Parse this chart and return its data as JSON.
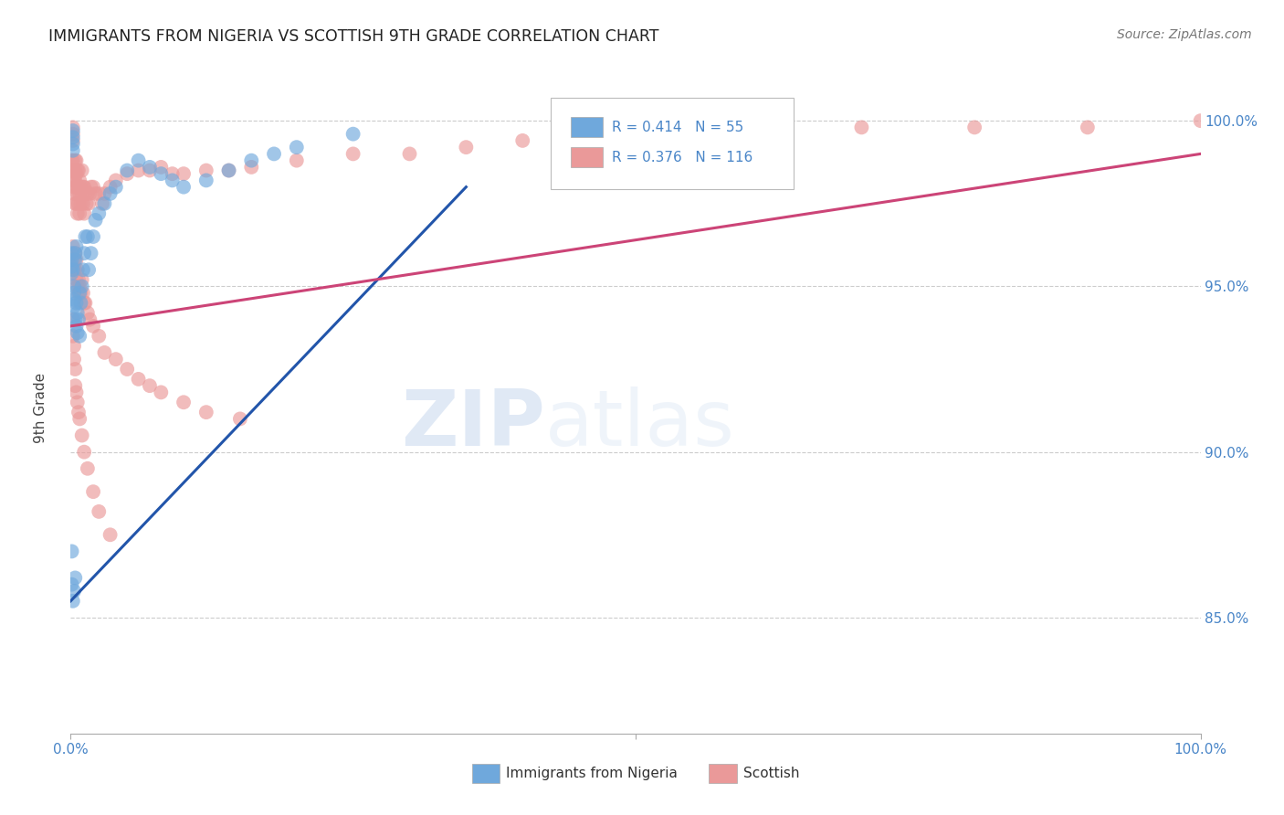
{
  "title": "IMMIGRANTS FROM NIGERIA VS SCOTTISH 9TH GRADE CORRELATION CHART",
  "source": "Source: ZipAtlas.com",
  "ylabel": "9th Grade",
  "ytick_labels": [
    "100.0%",
    "95.0%",
    "90.0%",
    "85.0%"
  ],
  "ytick_values": [
    1.0,
    0.95,
    0.9,
    0.85
  ],
  "xlim": [
    0.0,
    1.0
  ],
  "ylim": [
    0.815,
    1.018
  ],
  "legend_nigeria_R": "0.414",
  "legend_nigeria_N": "55",
  "legend_scottish_R": "0.376",
  "legend_scottish_N": "116",
  "color_nigeria": "#6fa8dc",
  "color_scottish": "#ea9999",
  "color_nigeria_line": "#2255aa",
  "color_scottish_line": "#cc4477",
  "color_axis_text": "#4a86c8",
  "watermark_zip": "ZIP",
  "watermark_atlas": "atlas",
  "nigeria_line_x0": 0.0,
  "nigeria_line_y0": 0.855,
  "nigeria_line_x1": 0.35,
  "nigeria_line_y1": 0.98,
  "scottish_line_x0": 0.0,
  "scottish_line_y0": 0.938,
  "scottish_line_x1": 1.0,
  "scottish_line_y1": 0.99,
  "nigeria_x": [
    0.001,
    0.001,
    0.001,
    0.001,
    0.002,
    0.002,
    0.002,
    0.002,
    0.002,
    0.003,
    0.003,
    0.003,
    0.003,
    0.004,
    0.004,
    0.004,
    0.005,
    0.005,
    0.005,
    0.006,
    0.006,
    0.007,
    0.008,
    0.008,
    0.009,
    0.01,
    0.011,
    0.012,
    0.013,
    0.015,
    0.016,
    0.018,
    0.02,
    0.022,
    0.025,
    0.03,
    0.035,
    0.04,
    0.05,
    0.06,
    0.07,
    0.08,
    0.09,
    0.1,
    0.12,
    0.14,
    0.16,
    0.18,
    0.2,
    0.25,
    0.001,
    0.001,
    0.002,
    0.003,
    0.004
  ],
  "nigeria_y": [
    0.96,
    0.958,
    0.956,
    0.954,
    0.997,
    0.995,
    0.993,
    0.991,
    0.955,
    0.95,
    0.948,
    0.946,
    0.944,
    0.96,
    0.958,
    0.94,
    0.962,
    0.945,
    0.938,
    0.942,
    0.936,
    0.94,
    0.948,
    0.935,
    0.945,
    0.95,
    0.955,
    0.96,
    0.965,
    0.965,
    0.955,
    0.96,
    0.965,
    0.97,
    0.972,
    0.975,
    0.978,
    0.98,
    0.985,
    0.988,
    0.986,
    0.984,
    0.982,
    0.98,
    0.982,
    0.985,
    0.988,
    0.99,
    0.992,
    0.996,
    0.87,
    0.86,
    0.855,
    0.858,
    0.862
  ],
  "scottish_x": [
    0.001,
    0.001,
    0.001,
    0.002,
    0.002,
    0.002,
    0.002,
    0.003,
    0.003,
    0.003,
    0.003,
    0.004,
    0.004,
    0.004,
    0.004,
    0.005,
    0.005,
    0.005,
    0.005,
    0.006,
    0.006,
    0.006,
    0.007,
    0.007,
    0.007,
    0.008,
    0.008,
    0.008,
    0.009,
    0.009,
    0.01,
    0.01,
    0.011,
    0.011,
    0.012,
    0.012,
    0.013,
    0.014,
    0.015,
    0.016,
    0.017,
    0.018,
    0.02,
    0.022,
    0.025,
    0.028,
    0.03,
    0.035,
    0.04,
    0.05,
    0.06,
    0.07,
    0.08,
    0.09,
    0.1,
    0.12,
    0.14,
    0.16,
    0.2,
    0.25,
    0.3,
    0.35,
    0.4,
    0.5,
    0.6,
    0.7,
    0.8,
    0.9,
    1.0,
    0.002,
    0.003,
    0.003,
    0.004,
    0.004,
    0.005,
    0.005,
    0.006,
    0.006,
    0.007,
    0.007,
    0.008,
    0.009,
    0.01,
    0.011,
    0.012,
    0.013,
    0.015,
    0.017,
    0.02,
    0.025,
    0.03,
    0.04,
    0.05,
    0.06,
    0.07,
    0.08,
    0.1,
    0.12,
    0.15,
    0.002,
    0.002,
    0.003,
    0.003,
    0.004,
    0.004,
    0.005,
    0.006,
    0.007,
    0.008,
    0.01,
    0.012,
    0.015,
    0.02,
    0.025,
    0.035
  ],
  "scottish_y": [
    0.988,
    0.985,
    0.982,
    0.998,
    0.996,
    0.994,
    0.988,
    0.985,
    0.982,
    0.98,
    0.978,
    0.988,
    0.985,
    0.982,
    0.975,
    0.988,
    0.984,
    0.98,
    0.975,
    0.985,
    0.978,
    0.972,
    0.985,
    0.98,
    0.975,
    0.982,
    0.978,
    0.972,
    0.98,
    0.975,
    0.985,
    0.978,
    0.98,
    0.975,
    0.98,
    0.972,
    0.978,
    0.975,
    0.978,
    0.975,
    0.978,
    0.98,
    0.98,
    0.978,
    0.978,
    0.975,
    0.978,
    0.98,
    0.982,
    0.984,
    0.985,
    0.985,
    0.986,
    0.984,
    0.984,
    0.985,
    0.985,
    0.986,
    0.988,
    0.99,
    0.99,
    0.992,
    0.994,
    0.996,
    0.996,
    0.998,
    0.998,
    0.998,
    1.0,
    0.962,
    0.958,
    0.955,
    0.96,
    0.955,
    0.958,
    0.952,
    0.955,
    0.95,
    0.952,
    0.948,
    0.95,
    0.948,
    0.952,
    0.948,
    0.945,
    0.945,
    0.942,
    0.94,
    0.938,
    0.935,
    0.93,
    0.928,
    0.925,
    0.922,
    0.92,
    0.918,
    0.915,
    0.912,
    0.91,
    0.94,
    0.935,
    0.932,
    0.928,
    0.925,
    0.92,
    0.918,
    0.915,
    0.912,
    0.91,
    0.905,
    0.9,
    0.895,
    0.888,
    0.882,
    0.875
  ]
}
